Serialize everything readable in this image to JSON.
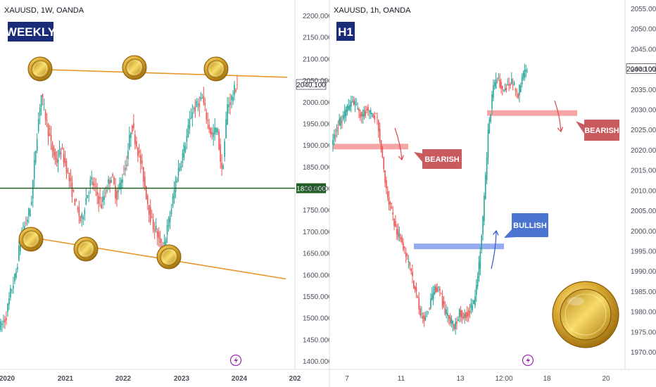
{
  "chart_data": [
    {
      "type": "candlestick",
      "symbol": "XAUUSD, 1W, OANDA",
      "timeframe_badge": "WEEKLY",
      "y_ticks": [
        "2200.000",
        "2150.000",
        "2100.000",
        "2050.000",
        "2000.000",
        "1950.000",
        "1900.000",
        "1850.000",
        "1800.000",
        "1750.000",
        "1700.000",
        "1650.000",
        "1600.000",
        "1550.000",
        "1500.000",
        "1450.000",
        "1400.000"
      ],
      "x_ticks": [
        "2020",
        "2021",
        "2022",
        "2023",
        "2024",
        "202"
      ],
      "ylim": [
        1380,
        2225
      ],
      "price_label": "2040.100",
      "horizontal_line": {
        "value": 1800,
        "label": "1800.000",
        "color": "#1e5e20"
      },
      "upper_trendline": {
        "from": [
          "2020-W30",
          2075
        ],
        "to": [
          "2024-W20",
          2068
        ],
        "color": "#e8962a"
      },
      "lower_trendline": {
        "from": [
          "2019-W45",
          1690
        ],
        "to": [
          "2024-W20",
          1590
        ],
        "color": "#e8962a"
      },
      "touch_markers": [
        {
          "x": "2020-W32",
          "y": 2072
        },
        {
          "x": "2022-W10",
          "y": 2070
        },
        {
          "x": "2023-W18",
          "y": 2068
        },
        {
          "x": "2020-W10",
          "y": 1680
        },
        {
          "x": "2021-W12",
          "y": 1660
        },
        {
          "x": "2022-W40",
          "y": 1640
        }
      ],
      "colors": {
        "up": "#26a69a",
        "down": "#ef5350"
      }
    },
    {
      "type": "candlestick",
      "symbol": "XAUUSD, 1h, OANDA",
      "timeframe_badge": "H1",
      "y_ticks": [
        "2055.000",
        "2050.000",
        "2045.000",
        "2040.000",
        "2035.000",
        "2030.000",
        "2025.000",
        "2020.000",
        "2015.000",
        "2010.000",
        "2005.000",
        "2000.000",
        "1995.000",
        "1990.000",
        "1985.000",
        "1980.000",
        "1975.000",
        "1970.000"
      ],
      "x_ticks": [
        "7",
        "11",
        "13",
        "12:00",
        "18",
        "20"
      ],
      "ylim": [
        1966,
        2058
      ],
      "price_label": "2040.100",
      "zones": [
        {
          "type": "supply",
          "top": 2021.5,
          "bottom": 2020.2,
          "color": "#f4a0a0"
        },
        {
          "type": "demand",
          "top": 1996.8,
          "bottom": 1995.5,
          "color": "#8fa8f0"
        },
        {
          "type": "supply",
          "top": 2029.8,
          "bottom": 2028.4,
          "color": "#f4a0a0"
        }
      ],
      "annotations": [
        {
          "text": "BEARISH",
          "color": "#c95a5e"
        },
        {
          "text": "BULLISH",
          "color": "#4a74d0"
        },
        {
          "text": "BEARISH",
          "color": "#c95a5e"
        }
      ],
      "colors": {
        "up": "#26a69a",
        "down": "#ef5350"
      }
    }
  ]
}
